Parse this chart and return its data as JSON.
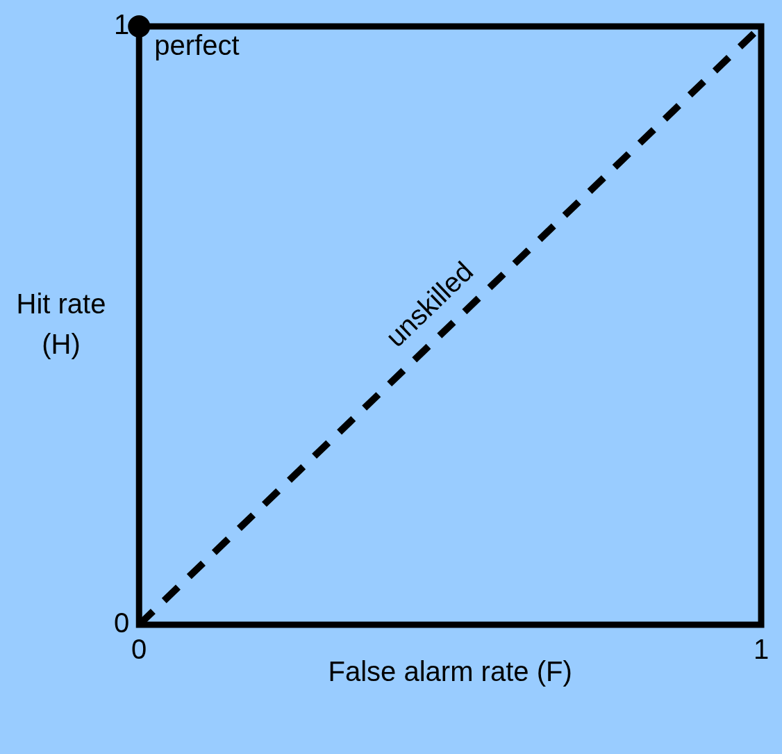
{
  "chart_data": {
    "type": "line",
    "xlabel": "False alarm rate (F)",
    "ylabel": "Hit rate (H)",
    "xlim": [
      0,
      1
    ],
    "ylim": [
      0,
      1
    ],
    "xticks": [
      0,
      1
    ],
    "yticks": [
      0,
      1
    ],
    "legend": false,
    "x": [
      0,
      1
    ],
    "series": [
      {
        "name": "perfect",
        "type": "scatter",
        "color": "#000000",
        "values": [
          1,
          null
        ],
        "marker": "circle"
      },
      {
        "name": "unskilled",
        "color": "#000000",
        "values": [
          0,
          1
        ],
        "line_style": "dashed",
        "marker": "none"
      }
    ]
  }
}
